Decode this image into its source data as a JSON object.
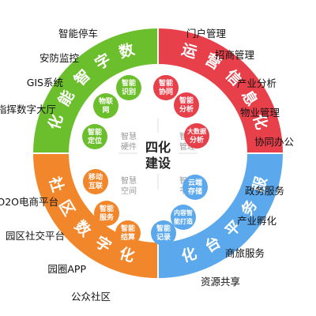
{
  "center": {
    "line1": "四化",
    "line2": "建设"
  },
  "quadrants": {
    "top_left": {
      "ring_text": "数字智能化",
      "color": "#6cbf2c",
      "inner_label": [
        "智慧",
        "硬件"
      ],
      "circles": [
        [
          "智能",
          "识别"
        ],
        [
          "物联",
          "网"
        ],
        [
          "智能",
          "定位"
        ]
      ]
    },
    "top_right": {
      "ring_text": "运营信息化",
      "color": "#e8404a",
      "inner_label": [
        "智慧",
        "管理"
      ],
      "circles": [
        [
          "智能",
          "协同"
        ],
        [
          "智能",
          "分析"
        ],
        [
          "大数据",
          "分析"
        ]
      ]
    },
    "bottom_left": {
      "ring_text": "社区数字化",
      "color": "#f2862a",
      "inner_label": [
        "智慧",
        "空间"
      ],
      "circles": [
        [
          "移动",
          "互联"
        ],
        [
          "智能",
          "服务"
        ],
        [
          "智能",
          "结算"
        ]
      ]
    },
    "bottom_right": {
      "ring_text": "服务平台化",
      "color": "#5ba8ec",
      "inner_label": [
        "智慧",
        "平台"
      ],
      "circles": [
        [
          "云端",
          "存储"
        ],
        [
          "内容智",
          "能打造"
        ],
        [
          "智能",
          "记录"
        ]
      ]
    }
  },
  "outer_labels": {
    "top_left": [
      "智能停车",
      "安防监控",
      "GIS系统",
      "指挥数字大厅"
    ],
    "top_right": [
      "门户管理",
      "招商管理",
      "产业分析",
      "物业管理",
      "协同办公"
    ],
    "bottom_left": [
      "O2O电商平台",
      "园区社交平台",
      "园圈APP",
      "公众社区"
    ],
    "bottom_right": [
      "政务服务",
      "产业孵化",
      "商旅服务",
      "资源共享"
    ]
  }
}
